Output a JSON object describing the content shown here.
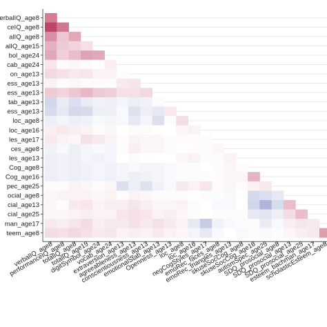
{
  "chart_data": {
    "type": "heatmap",
    "variables": [
      "verbalIQ_age8",
      "performanceIQ_age8",
      "totalIQ_age8",
      "totalIQ_age15",
      "digitSymbol_age24",
      "vocab_age24",
      "extraversion_age13",
      "agreeableness_age13",
      "conscientiousness_age13",
      "emotionalStab_age13",
      "Openness_age13",
      "loc_age8",
      "loc_age16",
      "negCogStyles_age17",
      "emoRec_faces_age8",
      "emoRec_triangles_age13",
      "skuseSocCog_age8",
      "skuseSocCog_age16",
      "autismSpec_age25",
      "SDQ_prosocial_age8",
      "SDQ_prosocial_age13",
      "SDQ_prosocial_age25",
      "esteem_bachman_age17",
      "scholasticEsteem_age8"
    ],
    "row_labels_visible": [
      "erbalIQ_age8",
      "ceIQ_age8",
      "alIQ_age8",
      "alIQ_age15",
      "bol_age24",
      "cab_age24",
      "on_age13",
      "ess_age13",
      "ess_age13",
      "tab_age13",
      "ess_age13",
      "loc_age8",
      "loc_age16",
      "les_age17",
      "ces_age8",
      "les_age13",
      "Cog_age8",
      "Cog_age16",
      "pec_age25",
      "ocial_age8",
      "cial_age13",
      "cial_age25",
      "man_age17",
      "teem_age8"
    ],
    "values": [
      [
        0.6
      ],
      [
        0.85,
        0.62
      ],
      [
        0.52,
        0.26,
        0.4
      ],
      [
        0.36,
        0.24,
        0.2,
        0.14
      ],
      [
        0.4,
        0.22,
        0.3,
        0.42,
        0.4
      ],
      [
        0.12,
        0.02,
        0.04,
        0.02,
        0.0,
        0.08
      ],
      [
        0.18,
        0.14,
        0.1,
        0.12,
        0.06,
        0.06,
        0.02
      ],
      [
        0.06,
        0.02,
        0.04,
        0.02,
        0.02,
        0.02,
        0.1,
        0.12
      ],
      [
        0.24,
        0.2,
        0.26,
        0.32,
        0.24,
        0.22,
        0.14,
        0.14,
        0.18
      ],
      [
        -0.25,
        -0.12,
        -0.2,
        -0.12,
        -0.08,
        -0.1,
        -0.06,
        -0.1,
        -0.08,
        -0.02
      ],
      [
        -0.22,
        -0.14,
        -0.24,
        -0.22,
        -0.1,
        -0.1,
        -0.04,
        -0.18,
        -0.1,
        -0.14,
        0.1
      ],
      [
        -0.1,
        -0.06,
        -0.1,
        -0.08,
        -0.04,
        -0.06,
        -0.04,
        -0.14,
        -0.06,
        -0.2,
        -0.02,
        0.16
      ],
      [
        0.08,
        0.1,
        0.08,
        0.06,
        0.02,
        0.04,
        0.0,
        0.02,
        0.02,
        0.0,
        0.0,
        0.04,
        0.06
      ],
      [
        0.1,
        0.06,
        0.04,
        0.14,
        0.1,
        0.06,
        0.02,
        0.06,
        0.04,
        0.04,
        0.02,
        0.02,
        0.02,
        0.02
      ],
      [
        -0.08,
        -0.04,
        -0.1,
        -0.06,
        -0.04,
        -0.06,
        0.02,
        0.08,
        0.04,
        0.04,
        0.02,
        0.0,
        0.02,
        0.02,
        0.04
      ],
      [
        -0.1,
        -0.08,
        -0.1,
        -0.06,
        -0.08,
        -0.06,
        0.0,
        0.02,
        0.0,
        0.0,
        0.0,
        0.04,
        0.06,
        0.02,
        0.02,
        0.06
      ],
      [
        -0.1,
        -0.08,
        -0.1,
        -0.08,
        -0.06,
        -0.08,
        -0.06,
        -0.04,
        -0.06,
        -0.06,
        -0.04,
        -0.02,
        -0.02,
        0.0,
        -0.02,
        0.04,
        0.02
      ],
      [
        -0.1,
        -0.08,
        -0.1,
        -0.08,
        -0.06,
        -0.08,
        -0.06,
        -0.1,
        -0.08,
        -0.06,
        -0.04,
        -0.02,
        0.02,
        -0.02,
        0.02,
        0.04,
        0.04,
        0.35
      ],
      [
        0.02,
        0.02,
        0.06,
        0.04,
        0.02,
        0.04,
        -0.2,
        -0.1,
        -0.18,
        -0.08,
        -0.04,
        0.1,
        0.06,
        0.12,
        0.02,
        0.04,
        0.02,
        0.06,
        0.1
      ],
      [
        0.04,
        0.06,
        0.06,
        0.06,
        0.04,
        0.06,
        0.02,
        0.06,
        0.04,
        0.02,
        0.02,
        0.02,
        0.0,
        -0.02,
        -0.02,
        -0.04,
        0.0,
        -0.24,
        -0.2,
        -0.14
      ],
      [
        0.04,
        0.02,
        0.1,
        0.12,
        0.06,
        0.08,
        0.08,
        0.12,
        0.08,
        0.04,
        0.04,
        0.06,
        0.02,
        0.0,
        -0.04,
        -0.04,
        0.0,
        -0.26,
        -0.45,
        -0.22,
        0.3
      ],
      [
        0.04,
        0.04,
        0.06,
        0.08,
        0.06,
        0.06,
        0.12,
        0.14,
        0.12,
        0.06,
        0.08,
        0.04,
        0.02,
        0.0,
        0.02,
        -0.02,
        -0.02,
        -0.14,
        -0.16,
        -0.1,
        0.16,
        0.3
      ],
      [
        0.1,
        0.08,
        0.12,
        0.16,
        0.08,
        0.1,
        0.1,
        0.14,
        0.1,
        0.14,
        0.1,
        0.06,
        -0.14,
        -0.32,
        -0.08,
        -0.04,
        -0.02,
        -0.02,
        -0.12,
        -0.04,
        0.08,
        0.12,
        0.1
      ],
      [
        0.16,
        0.14,
        0.18,
        0.14,
        0.1,
        0.12,
        0.06,
        0.08,
        0.06,
        0.1,
        0.06,
        0.04,
        -0.06,
        -0.14,
        -0.04,
        0.0,
        -0.04,
        0.02,
        -0.04,
        -0.02,
        0.04,
        0.08,
        0.1,
        0.45
      ]
    ],
    "color_scale": {
      "negative": "#4a5fae",
      "zero": "#ffffff",
      "positive": "#b4254e",
      "range": [
        -1,
        1
      ]
    },
    "title": "",
    "xlabel": "",
    "ylabel": ""
  }
}
